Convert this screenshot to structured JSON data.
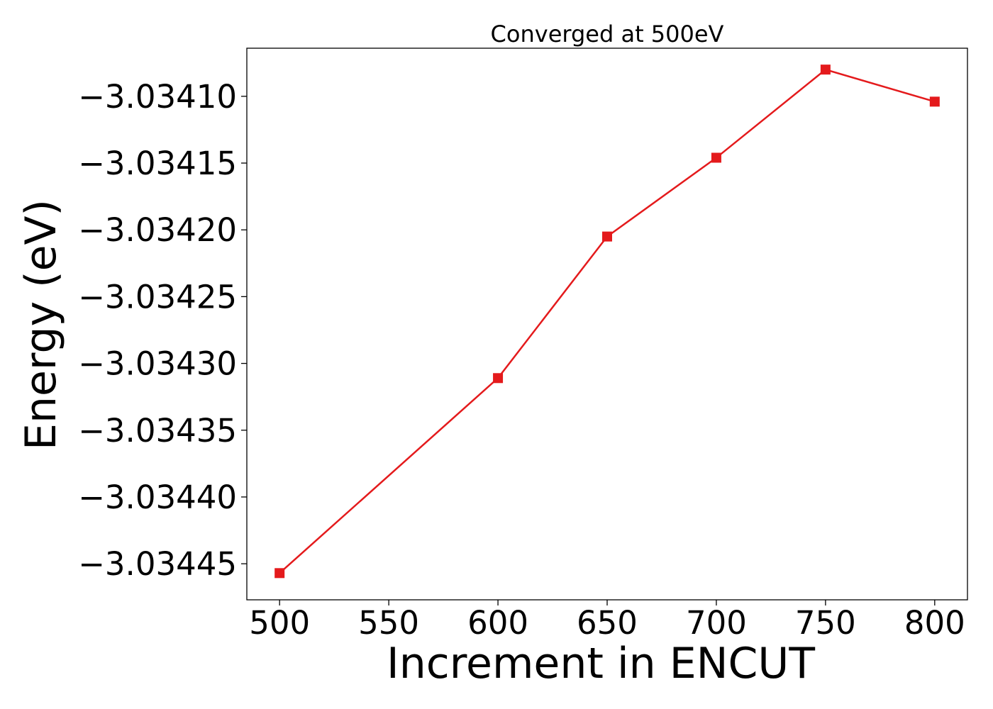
{
  "chart_data": {
    "type": "line",
    "title": "Converged at 500eV",
    "xlabel": "Increment in ENCUT",
    "ylabel": "Energy (eV)",
    "x": [
      500,
      600,
      650,
      700,
      750,
      800
    ],
    "series": [
      {
        "values": [
          -3.034457,
          -3.034311,
          -3.034205,
          -3.034146,
          -3.03408,
          -3.034104
        ]
      }
    ],
    "xlim": [
      485,
      815
    ],
    "ylim": [
      -3.034477,
      -3.034064
    ],
    "xticks": [
      500,
      550,
      600,
      650,
      700,
      750,
      800
    ],
    "xtick_labels": [
      "500",
      "550",
      "600",
      "650",
      "700",
      "750",
      "800"
    ],
    "yticks": [
      -3.03445,
      -3.0344,
      -3.03435,
      -3.0343,
      -3.03425,
      -3.0342,
      -3.03415,
      -3.0341
    ],
    "ytick_labels": [
      "−3.03445",
      "−3.03440",
      "−3.03435",
      "−3.03430",
      "−3.03425",
      "−3.03420",
      "−3.03415",
      "−3.03410"
    ],
    "grid": false,
    "line_color": "#e41a1c",
    "marker": "square"
  }
}
